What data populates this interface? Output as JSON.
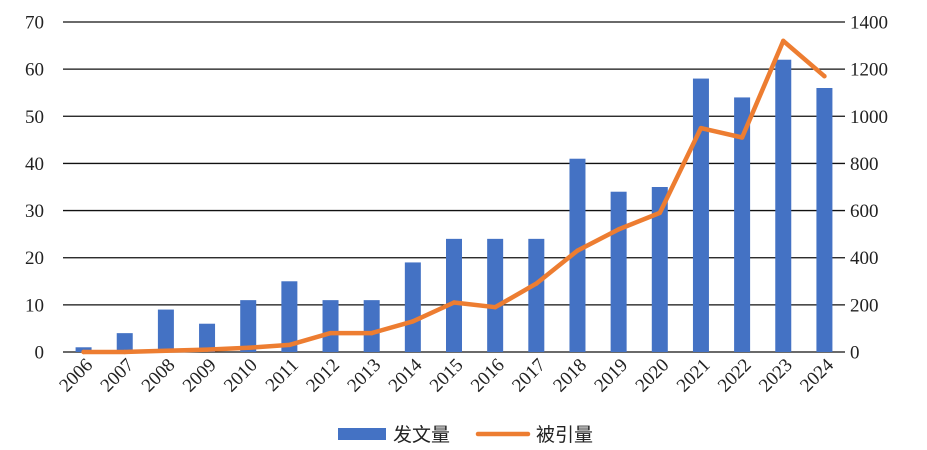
{
  "chart_data": {
    "type": "bar",
    "categories": [
      "2006",
      "2007",
      "2008",
      "2009",
      "2010",
      "2011",
      "2012",
      "2013",
      "2014",
      "2015",
      "2016",
      "2017",
      "2018",
      "2019",
      "2020",
      "2021",
      "2022",
      "2023",
      "2024"
    ],
    "series": [
      {
        "name": "发文量",
        "type": "bar",
        "axis": "left",
        "color": "#4472C4",
        "values": [
          1,
          4,
          9,
          6,
          11,
          15,
          11,
          11,
          19,
          24,
          24,
          24,
          41,
          34,
          35,
          58,
          54,
          62,
          56
        ]
      },
      {
        "name": "被引量",
        "type": "line",
        "axis": "right",
        "color": "#ED7D31",
        "values": [
          0,
          0,
          5,
          10,
          18,
          30,
          80,
          80,
          130,
          210,
          190,
          290,
          430,
          520,
          590,
          950,
          910,
          1320,
          1170
        ]
      }
    ],
    "y_left": {
      "min": 0,
      "max": 70,
      "ticks": [
        "0",
        "10",
        "20",
        "30",
        "40",
        "50",
        "60",
        "70"
      ]
    },
    "y_right": {
      "min": 0,
      "max": 1400,
      "ticks": [
        "0",
        "200",
        "400",
        "600",
        "800",
        "1000",
        "1200",
        "1400"
      ]
    },
    "title": "",
    "xlabel": "",
    "ylabel": "",
    "grid": true,
    "legend_position": "bottom"
  }
}
